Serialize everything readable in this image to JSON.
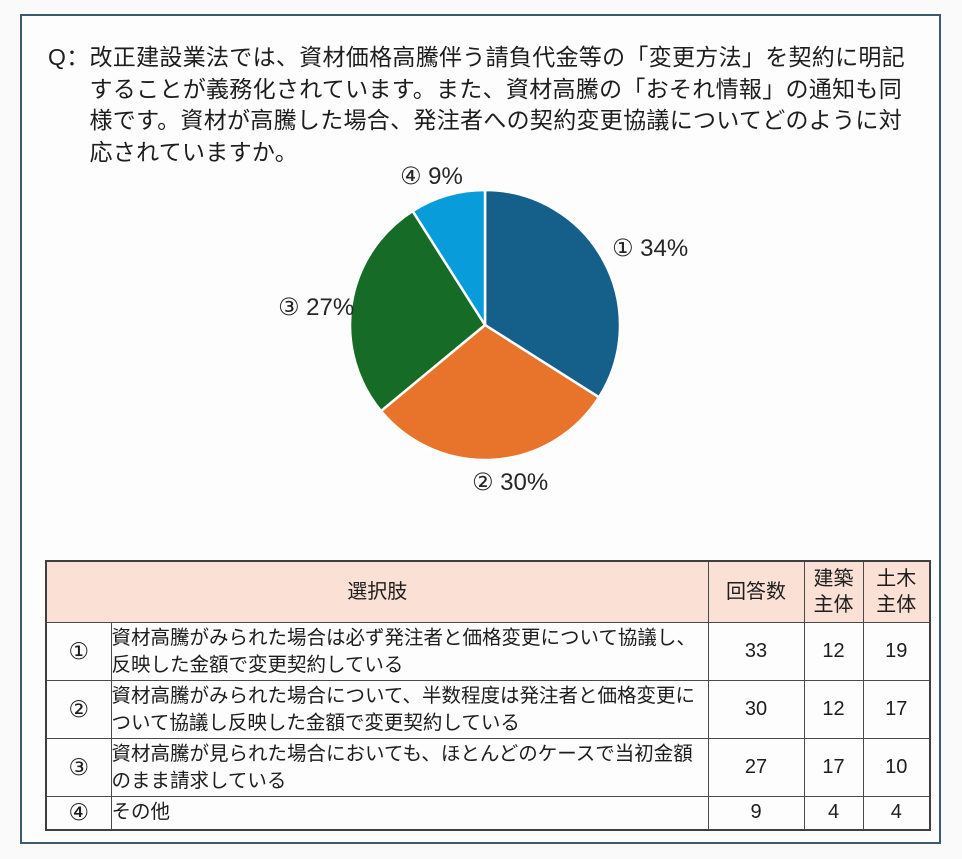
{
  "question": {
    "prefix": "Q：",
    "lines": [
      "改正建設業法では、資材価格高騰伴う請負代金等の「変更方法」を契約に明記",
      "することが義務化されています。また、資材高騰の「おそれ情報」の通知も同",
      "様です。資材が高騰した場合、発注者への契約変更協議についてどのように対",
      "応されていますか。"
    ]
  },
  "chart_data": {
    "type": "pie",
    "title": "",
    "categories": [
      "①",
      "②",
      "③",
      "④"
    ],
    "values": [
      34,
      30,
      27,
      9
    ],
    "unit": "%",
    "display_labels": [
      "① 34%",
      "② 30%",
      "③ 27%",
      "④ 9%"
    ],
    "colors": [
      "#15608a",
      "#e8742c",
      "#166c26",
      "#089cda"
    ],
    "start_angle": "top",
    "direction": "clockwise",
    "legend_position": "around-slices"
  },
  "table": {
    "headers": {
      "choice": "選択肢",
      "answers": "回答数",
      "building": "建築\n主体",
      "civil": "土木\n主体"
    },
    "rows": [
      {
        "no": "①",
        "text": "資材高騰がみられた場合は必ず発注者と価格変更について協議し、反映した金額で変更契約している",
        "answers": "33",
        "building": "12",
        "civil": "19"
      },
      {
        "no": "②",
        "text": "資材高騰がみられた場合について、半数程度は発注者と価格変更について協議し反映した金額で変更契約している",
        "answers": "30",
        "building": "12",
        "civil": "17"
      },
      {
        "no": "③",
        "text": "資材高騰が見られた場合においても、ほとんどのケースで当初金額のまま請求している",
        "answers": "27",
        "building": "17",
        "civil": "10"
      },
      {
        "no": "④",
        "text": "その他",
        "answers": "9",
        "building": "4",
        "civil": "4"
      }
    ]
  },
  "colors": {
    "frame_border": "#3c5a69",
    "header_bg": "#fbe1d5",
    "table_border": "#4a4a4a",
    "text": "#1d1d1d"
  }
}
